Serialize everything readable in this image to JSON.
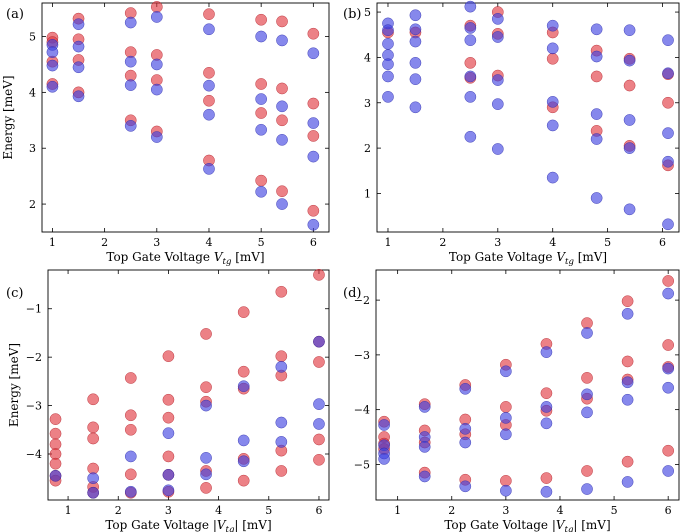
{
  "chart_data": [
    {
      "type": "scatter",
      "panel_label": "(a)",
      "xlabel": "Top Gate Voltage V_tg [mV]",
      "ylabel": "Energy [meV]",
      "xlim": [
        0.8,
        6.3
      ],
      "ylim": [
        1.5,
        5.6
      ],
      "xticks": [
        "1",
        "2",
        "3",
        "4",
        "5",
        "6"
      ],
      "yticks": [
        "2",
        "3",
        "4",
        "5"
      ],
      "series": [
        {
          "name": "red",
          "color": "#e0343c",
          "points": [
            [
              1.0,
              4.98
            ],
            [
              1.0,
              4.9
            ],
            [
              1.0,
              4.55
            ],
            [
              1.0,
              4.15
            ],
            [
              1.5,
              5.32
            ],
            [
              1.5,
              4.95
            ],
            [
              1.5,
              4.58
            ],
            [
              1.5,
              4.0
            ],
            [
              2.5,
              5.42
            ],
            [
              2.5,
              4.72
            ],
            [
              2.5,
              4.3
            ],
            [
              2.5,
              3.5
            ],
            [
              3.0,
              5.53
            ],
            [
              3.0,
              4.67
            ],
            [
              3.0,
              4.22
            ],
            [
              3.0,
              3.3
            ],
            [
              4.0,
              5.4
            ],
            [
              4.0,
              4.35
            ],
            [
              4.0,
              3.85
            ],
            [
              4.0,
              2.78
            ],
            [
              5.0,
              5.3
            ],
            [
              5.0,
              4.15
            ],
            [
              5.0,
              3.63
            ],
            [
              5.0,
              2.42
            ],
            [
              5.4,
              5.27
            ],
            [
              5.4,
              4.07
            ],
            [
              5.4,
              3.5
            ],
            [
              5.4,
              2.23
            ],
            [
              6.0,
              5.05
            ],
            [
              6.0,
              3.8
            ],
            [
              6.0,
              3.22
            ],
            [
              6.0,
              1.88
            ]
          ]
        },
        {
          "name": "blue",
          "color": "#3b3fe0",
          "points": [
            [
              1.0,
              4.85
            ],
            [
              1.0,
              4.72
            ],
            [
              1.0,
              4.48
            ],
            [
              1.0,
              4.1
            ],
            [
              1.5,
              5.22
            ],
            [
              1.5,
              4.82
            ],
            [
              1.5,
              4.45
            ],
            [
              1.5,
              3.93
            ],
            [
              2.5,
              5.25
            ],
            [
              2.5,
              4.55
            ],
            [
              2.5,
              4.13
            ],
            [
              2.5,
              3.4
            ],
            [
              3.0,
              5.35
            ],
            [
              3.0,
              4.5
            ],
            [
              3.0,
              4.05
            ],
            [
              3.0,
              3.2
            ],
            [
              4.0,
              5.13
            ],
            [
              4.0,
              4.12
            ],
            [
              4.0,
              3.6
            ],
            [
              4.0,
              2.63
            ],
            [
              5.0,
              5.0
            ],
            [
              5.0,
              3.88
            ],
            [
              5.0,
              3.33
            ],
            [
              5.0,
              2.22
            ],
            [
              5.4,
              4.93
            ],
            [
              5.4,
              3.75
            ],
            [
              5.4,
              3.15
            ],
            [
              5.4,
              2.0
            ],
            [
              6.0,
              4.7
            ],
            [
              6.0,
              3.45
            ],
            [
              6.0,
              2.85
            ],
            [
              6.0,
              1.63
            ]
          ]
        }
      ]
    },
    {
      "type": "scatter",
      "panel_label": "(b)",
      "xlabel": "Top Gate Voltage V_tg [mV]",
      "ylabel": "",
      "xlim": [
        0.8,
        6.3
      ],
      "ylim": [
        0.15,
        5.2
      ],
      "xticks": [
        "1",
        "2",
        "3",
        "4",
        "5",
        "6"
      ],
      "yticks": [
        "1",
        "2",
        "3",
        "4",
        "5"
      ],
      "series": [
        {
          "name": "red",
          "color": "#e0343c",
          "points": [
            [
              1.0,
              4.55
            ],
            [
              1.5,
              4.55
            ],
            [
              2.5,
              4.7
            ],
            [
              2.5,
              3.88
            ],
            [
              2.5,
              3.55
            ],
            [
              3.0,
              5.0
            ],
            [
              3.0,
              4.52
            ],
            [
              3.0,
              3.6
            ],
            [
              4.0,
              4.55
            ],
            [
              4.0,
              3.97
            ],
            [
              4.0,
              2.9
            ],
            [
              4.8,
              4.15
            ],
            [
              4.8,
              3.58
            ],
            [
              4.8,
              2.38
            ],
            [
              5.4,
              3.97
            ],
            [
              5.4,
              3.38
            ],
            [
              5.4,
              2.05
            ],
            [
              6.1,
              3.63
            ],
            [
              6.1,
              3.0
            ],
            [
              6.1,
              1.62
            ]
          ]
        },
        {
          "name": "blue",
          "color": "#3b3fe0",
          "points": [
            [
              1.0,
              4.75
            ],
            [
              1.0,
              4.6
            ],
            [
              1.0,
              4.3
            ],
            [
              1.0,
              4.05
            ],
            [
              1.0,
              3.85
            ],
            [
              1.0,
              3.58
            ],
            [
              1.0,
              3.13
            ],
            [
              1.5,
              4.93
            ],
            [
              1.5,
              4.62
            ],
            [
              1.5,
              4.35
            ],
            [
              1.5,
              3.88
            ],
            [
              1.5,
              3.52
            ],
            [
              1.5,
              2.9
            ],
            [
              2.5,
              5.12
            ],
            [
              2.5,
              4.65
            ],
            [
              2.5,
              4.38
            ],
            [
              2.5,
              3.58
            ],
            [
              2.5,
              3.13
            ],
            [
              2.5,
              2.25
            ],
            [
              3.0,
              4.85
            ],
            [
              3.0,
              4.45
            ],
            [
              3.0,
              3.5
            ],
            [
              3.0,
              2.97
            ],
            [
              3.0,
              1.98
            ],
            [
              4.0,
              4.7
            ],
            [
              4.0,
              4.2
            ],
            [
              4.0,
              3.02
            ],
            [
              4.0,
              2.5
            ],
            [
              4.0,
              1.35
            ],
            [
              4.8,
              4.62
            ],
            [
              4.8,
              4.02
            ],
            [
              4.8,
              2.75
            ],
            [
              4.8,
              2.2
            ],
            [
              4.8,
              0.9
            ],
            [
              5.4,
              4.6
            ],
            [
              5.4,
              3.93
            ],
            [
              5.4,
              2.62
            ],
            [
              5.4,
              2.0
            ],
            [
              5.4,
              0.65
            ],
            [
              6.1,
              4.38
            ],
            [
              6.1,
              3.65
            ],
            [
              6.1,
              2.33
            ],
            [
              6.1,
              1.7
            ],
            [
              6.1,
              0.32
            ]
          ]
        }
      ]
    },
    {
      "type": "scatter",
      "panel_label": "(c)",
      "xlabel": "Top Gate Voltage |V_tg| [mV]",
      "ylabel": "Energy [meV]",
      "xlim": [
        0.6,
        6.2
      ],
      "ylim": [
        -4.95,
        -0.2
      ],
      "xticks": [
        "1",
        "2",
        "3",
        "4",
        "5",
        "6"
      ],
      "yticks": [
        "-1",
        "-2",
        "-3",
        "-4"
      ],
      "series": [
        {
          "name": "red",
          "color": "#e0343c",
          "points": [
            [
              0.75,
              -3.28
            ],
            [
              0.75,
              -3.58
            ],
            [
              0.75,
              -3.8
            ],
            [
              0.75,
              -4.0
            ],
            [
              0.75,
              -4.2
            ],
            [
              0.75,
              -4.45
            ],
            [
              0.75,
              -4.55
            ],
            [
              1.5,
              -2.87
            ],
            [
              1.5,
              -3.45
            ],
            [
              1.5,
              -3.68
            ],
            [
              1.5,
              -4.3
            ],
            [
              1.5,
              -4.68
            ],
            [
              1.5,
              -4.8
            ],
            [
              2.25,
              -2.43
            ],
            [
              2.25,
              -3.2
            ],
            [
              2.25,
              -3.5
            ],
            [
              2.25,
              -4.42
            ],
            [
              2.25,
              -4.8
            ],
            [
              3.0,
              -1.98
            ],
            [
              3.0,
              -2.88
            ],
            [
              3.0,
              -3.25
            ],
            [
              3.0,
              -4.05
            ],
            [
              3.0,
              -4.43
            ],
            [
              3.0,
              -4.78
            ],
            [
              3.75,
              -1.52
            ],
            [
              3.75,
              -2.62
            ],
            [
              3.75,
              -2.92
            ],
            [
              3.75,
              -4.35
            ],
            [
              3.75,
              -4.7
            ],
            [
              4.5,
              -1.07
            ],
            [
              4.5,
              -2.3
            ],
            [
              4.5,
              -2.65
            ],
            [
              4.5,
              -4.1
            ],
            [
              4.5,
              -4.55
            ],
            [
              5.25,
              -0.65
            ],
            [
              5.25,
              -1.98
            ],
            [
              5.25,
              -2.38
            ],
            [
              5.25,
              -3.93
            ],
            [
              5.25,
              -4.35
            ],
            [
              6.0,
              -0.3
            ],
            [
              6.0,
              -1.68
            ],
            [
              6.0,
              -2.1
            ],
            [
              6.0,
              -3.7
            ],
            [
              6.0,
              -4.12
            ]
          ]
        },
        {
          "name": "blue",
          "color": "#3b3fe0",
          "points": [
            [
              0.75,
              -4.45
            ],
            [
              1.5,
              -4.5
            ],
            [
              1.5,
              -4.8
            ],
            [
              2.25,
              -4.05
            ],
            [
              2.25,
              -4.78
            ],
            [
              3.0,
              -3.57
            ],
            [
              3.0,
              -4.43
            ],
            [
              3.0,
              -4.75
            ],
            [
              3.75,
              -3.0
            ],
            [
              3.75,
              -4.08
            ],
            [
              3.75,
              -4.42
            ],
            [
              4.5,
              -2.6
            ],
            [
              4.5,
              -3.72
            ],
            [
              4.5,
              -4.15
            ],
            [
              5.25,
              -2.2
            ],
            [
              5.25,
              -3.35
            ],
            [
              5.25,
              -3.75
            ],
            [
              6.0,
              -1.68
            ],
            [
              6.0,
              -2.97
            ],
            [
              6.0,
              -3.38
            ]
          ]
        }
      ]
    },
    {
      "type": "scatter",
      "panel_label": "(d)",
      "xlabel": "Top Gate Voltage |V_tg| [mV]",
      "ylabel": "",
      "xlim": [
        0.6,
        6.2
      ],
      "ylim": [
        -5.65,
        -1.45
      ],
      "xticks": [
        "1",
        "2",
        "3",
        "4",
        "5",
        "6"
      ],
      "yticks": [
        "-2",
        "-3",
        "-4",
        "-5"
      ],
      "series": [
        {
          "name": "red",
          "color": "#e0343c",
          "points": [
            [
              0.75,
              -4.22
            ],
            [
              0.75,
              -4.5
            ],
            [
              0.75,
              -4.62
            ],
            [
              0.75,
              -4.72
            ],
            [
              1.5,
              -3.9
            ],
            [
              1.5,
              -4.38
            ],
            [
              1.5,
              -4.6
            ],
            [
              1.5,
              -5.15
            ],
            [
              2.25,
              -3.55
            ],
            [
              2.25,
              -4.18
            ],
            [
              2.25,
              -4.45
            ],
            [
              2.25,
              -5.28
            ],
            [
              3.0,
              -3.18
            ],
            [
              3.0,
              -3.95
            ],
            [
              3.0,
              -4.28
            ],
            [
              3.0,
              -5.3
            ],
            [
              3.75,
              -2.8
            ],
            [
              3.75,
              -3.7
            ],
            [
              3.75,
              -4.02
            ],
            [
              3.75,
              -5.25
            ],
            [
              4.5,
              -2.42
            ],
            [
              4.5,
              -3.42
            ],
            [
              4.5,
              -3.8
            ],
            [
              4.5,
              -5.12
            ],
            [
              5.25,
              -2.02
            ],
            [
              5.25,
              -3.12
            ],
            [
              5.25,
              -3.45
            ],
            [
              5.25,
              -4.95
            ],
            [
              6.0,
              -1.65
            ],
            [
              6.0,
              -2.82
            ],
            [
              6.0,
              -3.22
            ],
            [
              6.0,
              -4.75
            ]
          ]
        },
        {
          "name": "blue",
          "color": "#3b3fe0",
          "points": [
            [
              0.75,
              -4.28
            ],
            [
              0.75,
              -4.65
            ],
            [
              0.75,
              -4.8
            ],
            [
              0.75,
              -4.9
            ],
            [
              1.5,
              -3.95
            ],
            [
              1.5,
              -4.5
            ],
            [
              1.5,
              -4.68
            ],
            [
              1.5,
              -5.22
            ],
            [
              2.25,
              -3.62
            ],
            [
              2.25,
              -4.35
            ],
            [
              2.25,
              -4.6
            ],
            [
              2.25,
              -5.4
            ],
            [
              3.0,
              -3.3
            ],
            [
              3.0,
              -4.15
            ],
            [
              3.0,
              -4.45
            ],
            [
              3.0,
              -5.48
            ],
            [
              3.75,
              -2.95
            ],
            [
              3.75,
              -3.95
            ],
            [
              3.75,
              -4.25
            ],
            [
              3.75,
              -5.5
            ],
            [
              4.5,
              -2.6
            ],
            [
              4.5,
              -3.72
            ],
            [
              4.5,
              -4.05
            ],
            [
              4.5,
              -5.45
            ],
            [
              5.25,
              -2.25
            ],
            [
              5.25,
              -3.5
            ],
            [
              5.25,
              -3.82
            ],
            [
              5.25,
              -5.32
            ],
            [
              6.0,
              -1.88
            ],
            [
              6.0,
              -3.25
            ],
            [
              6.0,
              -3.6
            ],
            [
              6.0,
              -5.12
            ]
          ]
        }
      ]
    }
  ]
}
